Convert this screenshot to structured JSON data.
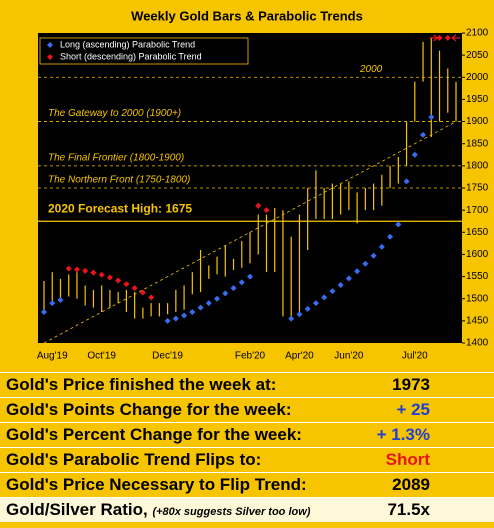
{
  "chart_data": {
    "type": "range-bar",
    "title": "Weekly Gold Bars & Parabolic Trends",
    "categories": [
      null,
      "Aug'19",
      null,
      null,
      null,
      null,
      null,
      "Oct'19",
      null,
      null,
      null,
      null,
      null,
      null,
      null,
      "Dec'19",
      null,
      null,
      null,
      null,
      null,
      null,
      null,
      null,
      null,
      "Feb'20",
      null,
      null,
      null,
      null,
      null,
      "Apr'20",
      null,
      null,
      null,
      null,
      null,
      "Jun'20",
      null,
      null,
      null,
      null,
      null,
      null,
      null,
      "Jul'20",
      null,
      null,
      null,
      null,
      null
    ],
    "high": [
      1540,
      1560,
      1545,
      1555,
      1560,
      1530,
      1520,
      1530,
      1520,
      1515,
      1520,
      1515,
      1480,
      1490,
      1490,
      1490,
      1520,
      1530,
      1560,
      1610,
      1575,
      1595,
      1620,
      1590,
      1630,
      1650,
      1690,
      1690,
      1705,
      1700,
      1640,
      1690,
      1750,
      1790,
      1750,
      1760,
      1760,
      1765,
      1740,
      1750,
      1760,
      1780,
      1800,
      1820,
      1900,
      1990,
      2080,
      2090,
      2060,
      2020,
      1990
    ],
    "low": [
      1470,
      1490,
      1500,
      1505,
      1500,
      1485,
      1480,
      1470,
      1480,
      1490,
      1470,
      1455,
      1455,
      1460,
      1460,
      1465,
      1470,
      1475,
      1510,
      1515,
      1545,
      1555,
      1550,
      1565,
      1570,
      1580,
      1600,
      1560,
      1560,
      1460,
      1450,
      1470,
      1610,
      1680,
      1680,
      1680,
      1690,
      1700,
      1670,
      1700,
      1700,
      1710,
      1750,
      1760,
      1800,
      1900,
      1990,
      1865,
      1900,
      1920,
      1900
    ],
    "bar_color": "#f7c400",
    "series": [
      {
        "name": "Long (ascending) Parabolic Trend",
        "color": "#3a6cf0",
        "values": [
          1470,
          1490,
          1497,
          null,
          null,
          null,
          null,
          null,
          null,
          null,
          null,
          null,
          null,
          null,
          null,
          1450,
          1455,
          1462,
          1470,
          1480,
          1490,
          1500,
          1512,
          1524,
          1537,
          1550,
          null,
          null,
          null,
          null,
          1455,
          1465,
          1477,
          1490,
          1503,
          1517,
          1531,
          1546,
          1562,
          1579,
          1597,
          1617,
          1640,
          1668,
          1765,
          1825,
          1870,
          1910,
          null,
          null,
          null
        ]
      },
      {
        "name": "Short (descending) Parabolic Trend",
        "color": "#e8161b",
        "values": [
          null,
          null,
          null,
          1568,
          1566,
          1563,
          1559,
          1554,
          1548,
          1541,
          1533,
          1524,
          1514,
          1503,
          null,
          null,
          null,
          null,
          null,
          null,
          null,
          null,
          null,
          null,
          null,
          null,
          1710,
          1700,
          null,
          null,
          null,
          null,
          null,
          null,
          null,
          null,
          null,
          null,
          null,
          null,
          null,
          null,
          null,
          null,
          null,
          null,
          null,
          null,
          2089,
          2089,
          null
        ]
      }
    ],
    "trend_line": [
      1400,
      1900
    ],
    "ylim": [
      1400,
      2100
    ],
    "yticks": [
      1400,
      1450,
      1500,
      1550,
      1600,
      1650,
      1700,
      1750,
      1800,
      1850,
      1900,
      1950,
      2000,
      2050,
      2100
    ],
    "reference_lines": [
      {
        "value": 2000,
        "label": "2000",
        "style": "dashed"
      },
      {
        "value": 1900,
        "label": "The Gateway to 2000 (1900+)",
        "style": "dashed"
      },
      {
        "value": 1800,
        "label": "The Final Frontier (1800-1900)",
        "style": "dashed"
      },
      {
        "value": 1750,
        "label": "The Northern Front (1750-1800)",
        "style": "dashed"
      },
      {
        "value": 1675,
        "label": "2020 Forecast High:  1675",
        "style": "solid"
      }
    ]
  },
  "table": {
    "rows": [
      {
        "label": "Gold's Price finished the week at:",
        "value": "1973",
        "color": "#000"
      },
      {
        "label": "Gold's Points Change for the week:",
        "value": "+ 25",
        "color": "#1f3fd6"
      },
      {
        "label": "Gold's Percent Change for the week:",
        "value": "+ 1.3%",
        "color": "#1f3fd6"
      },
      {
        "label": "Gold's Parabolic Trend Flips to:",
        "value": "Short",
        "color": "#e8161b"
      },
      {
        "label": "Gold's Price Necessary to Flip Trend:",
        "value": "2089",
        "color": "#000"
      },
      {
        "label": "Gold/Silver Ratio,",
        "note": "(+80x suggests Silver too low)",
        "value": "71.5x",
        "color": "#000"
      }
    ]
  }
}
